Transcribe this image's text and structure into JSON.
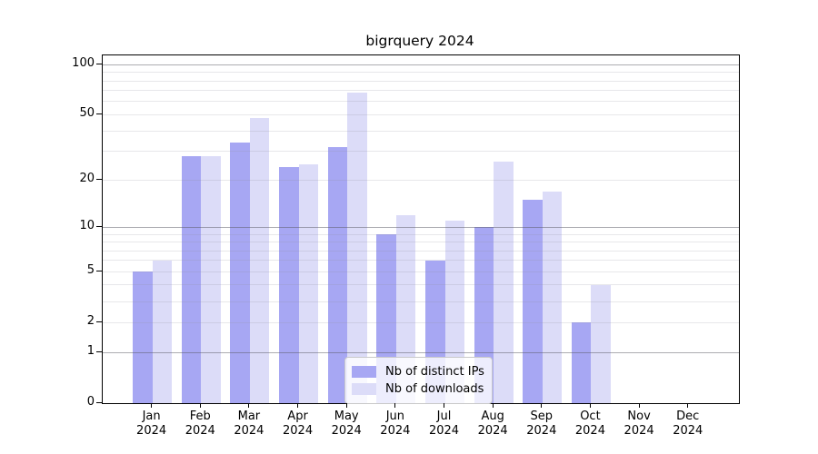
{
  "chart_data": {
    "type": "bar",
    "title": "bigrquery 2024",
    "categories": [
      "Jan",
      "Feb",
      "Mar",
      "Apr",
      "May",
      "Jun",
      "Jul",
      "Aug",
      "Sep",
      "Oct",
      "Nov",
      "Dec"
    ],
    "x_sub_label": "2024",
    "series": [
      {
        "name": "Nb of distinct IPs",
        "color": "#a7a7f3",
        "values": [
          5,
          28,
          34,
          24,
          32,
          9,
          6,
          10,
          15,
          2,
          0,
          0
        ]
      },
      {
        "name": "Nb of downloads",
        "color": "#dcdcf8",
        "values": [
          6,
          28,
          48,
          25,
          68,
          12,
          11,
          26,
          17,
          4,
          0,
          0
        ]
      }
    ],
    "y_scale": "log1p",
    "y_tick_values": [
      0,
      1,
      2,
      5,
      10,
      20,
      50,
      100
    ],
    "y_grid_major": [
      1,
      10,
      100
    ],
    "y_grid_minor": [
      2,
      3,
      4,
      5,
      6,
      7,
      8,
      9,
      20,
      30,
      40,
      50,
      60,
      70,
      80,
      90
    ],
    "ylim": [
      0,
      114
    ],
    "grid": "on",
    "legend_position": "lower-center",
    "background_color": "#ffffff",
    "spine_color": "#000000"
  }
}
